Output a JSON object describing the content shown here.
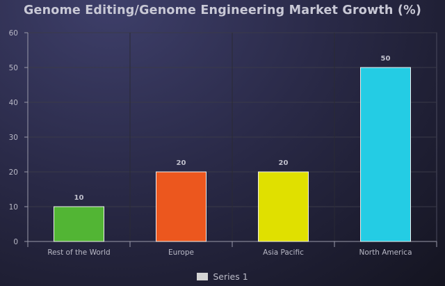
{
  "chart_data": {
    "type": "bar",
    "title": "Genome Editing/Genome Engineering Market Growth (%)",
    "categories": [
      "Rest of the World",
      "Europe",
      "Asia Pacific",
      "North America"
    ],
    "series": [
      {
        "name": "Series 1",
        "values": [
          10,
          20,
          20,
          50
        ]
      }
    ],
    "bar_colors": [
      "#52b534",
      "#ec571e",
      "#e0e000",
      "#24cce4"
    ],
    "legend_swatch_color": "#d4d4d4",
    "yticks": [
      0,
      10,
      20,
      30,
      40,
      50,
      60
    ],
    "ylim": [
      0,
      60
    ],
    "xlabel": "",
    "ylabel": "",
    "grid": true,
    "legend_position": "bottom"
  }
}
